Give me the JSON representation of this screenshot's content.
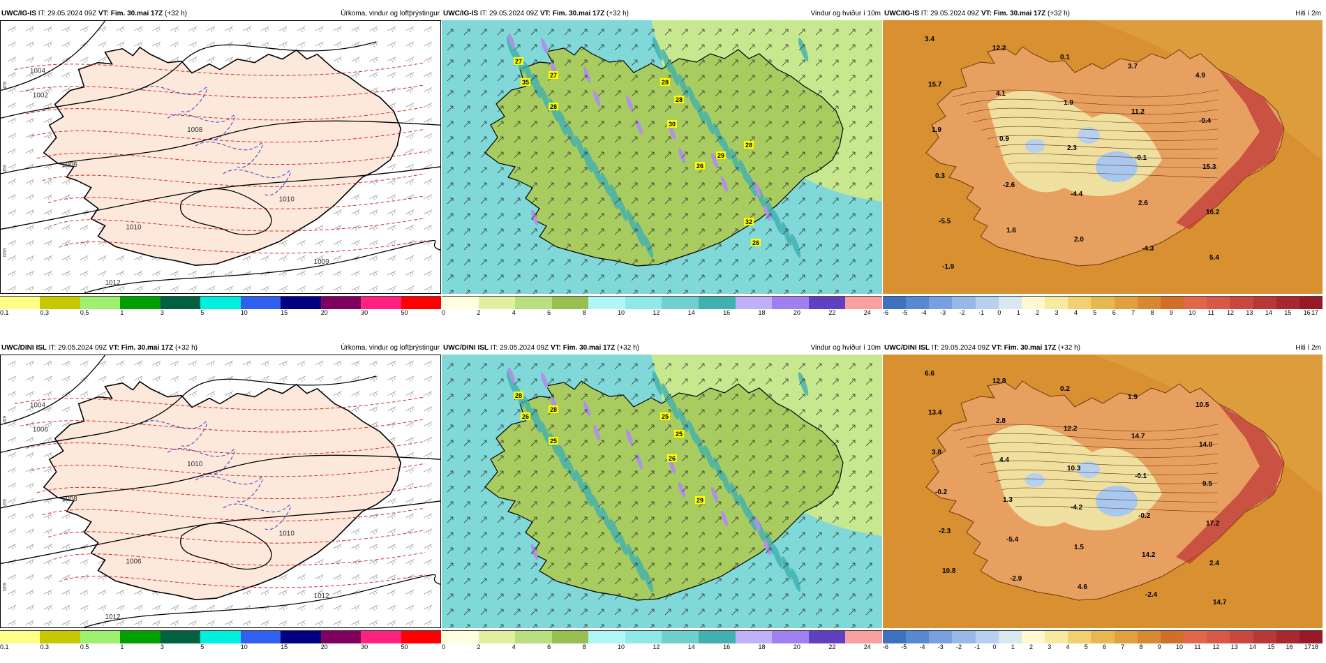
{
  "rows": [
    {
      "model": "UWC/IG-IS",
      "it_label": "IT:",
      "it_value": "29.05.2024 09Z",
      "vt_label": "VT:",
      "vt_value": "Fim. 30.mai 17Z",
      "lead": "(+32 h)"
    },
    {
      "model": "UWC/DINI ISL",
      "it_label": "IT:",
      "it_value": "29.05.2024 09Z",
      "vt_label": "VT:",
      "vt_value": "Fim. 30.mai 17Z",
      "lead": "(+32 h)"
    }
  ],
  "panel_titles": {
    "precip": "Úrkoma, vindur og loftþrýstingur",
    "wind": "Vindur og hviður í 10m",
    "temp": "Hiti í 2m"
  },
  "colorbars": {
    "precip": {
      "colors": [
        "#ffff88",
        "#c8c800",
        "#a0f070",
        "#00a000",
        "#006040",
        "#00f0e0",
        "#3060f0",
        "#000080",
        "#800060",
        "#ff2080",
        "#ff0000"
      ],
      "ticks": [
        "0.1",
        "0.3",
        "0.5",
        "1",
        "3",
        "5",
        "10",
        "15",
        "20",
        "30",
        "50"
      ]
    },
    "wind": {
      "colors": [
        "#ffffe0",
        "#e0f0a0",
        "#b8e080",
        "#98c050",
        "#b0f8f8",
        "#90e8e8",
        "#70d0d0",
        "#40b0b0",
        "#c0b0f8",
        "#a080f0",
        "#6040c0",
        "#f8a0a0"
      ],
      "ticks": [
        "0",
        "2",
        "4",
        "6",
        "8",
        "10",
        "12",
        "14",
        "16",
        "18",
        "20",
        "22",
        "24"
      ]
    },
    "temp_top": {
      "colors": [
        "#4070c0",
        "#5888d0",
        "#78a0e0",
        "#98b8e8",
        "#b8d0f0",
        "#d8e8f0",
        "#fff8d0",
        "#f8e8a0",
        "#f0d070",
        "#e8b850",
        "#e0a040",
        "#d88830",
        "#d07028",
        "#e06848",
        "#d85848",
        "#c84840",
        "#b83838",
        "#a82830",
        "#981828"
      ],
      "ticks": [
        "-6",
        "-5",
        "-4",
        "-3",
        "-2",
        "-1",
        "0",
        "1",
        "2",
        "3",
        "4",
        "5",
        "6",
        "7",
        "8",
        "9",
        "10",
        "11",
        "12",
        "13",
        "14",
        "15",
        "16",
        "17"
      ]
    },
    "temp_bottom": {
      "colors": [
        "#4070c0",
        "#5888d0",
        "#78a0e0",
        "#98b8e8",
        "#b8d0f0",
        "#d8e8f0",
        "#fff8d0",
        "#f8e8a0",
        "#f0d070",
        "#e8b850",
        "#e0a040",
        "#d88830",
        "#d07028",
        "#e06848",
        "#d85848",
        "#c84840",
        "#b83838",
        "#a82830",
        "#981828"
      ],
      "ticks": [
        "-6",
        "-5",
        "-4",
        "-3",
        "-2",
        "-1",
        "0",
        "1",
        "2",
        "3",
        "4",
        "5",
        "6",
        "7",
        "8",
        "9",
        "10",
        "11",
        "12",
        "13",
        "14",
        "15",
        "16",
        "17",
        "18"
      ]
    }
  },
  "map_colors": {
    "sea_precip": "#ffffff",
    "land_precip": "#fde8dc",
    "sea_wind": "#80d8d8",
    "land_wind": "#a8cc60",
    "sea_temp": "#d89030",
    "land_temp": "#e8a060"
  },
  "isobar_labels": {
    "top": [
      "1004",
      "1002",
      "1006",
      "1008",
      "1010",
      "1010",
      "1012",
      "1009"
    ],
    "bottom": [
      "1004",
      "1006",
      "1008",
      "1010",
      "1006",
      "1010",
      "1012",
      "1012"
    ]
  },
  "gust_labels": {
    "top": [
      "27",
      "35",
      "27",
      "28",
      "28",
      "28",
      "30",
      "26",
      "29",
      "28",
      "32",
      "26"
    ],
    "bottom": [
      "28",
      "26",
      "28",
      "25",
      "25",
      "25",
      "26",
      "29"
    ]
  },
  "temp_labels": {
    "top": [
      "3.4",
      "12.2",
      "0.1",
      "3.7",
      "4.9",
      "15.7",
      "4.1",
      "1.9",
      "11.2",
      "-0.4",
      "1.9",
      "0.9",
      "2.3",
      "-0.1",
      "15.3",
      "0.3",
      "-2.6",
      "-4.4",
      "2.6",
      "16.2",
      "-5.5",
      "1.6",
      "2.0",
      "-4.3",
      "5.4",
      "-1.9"
    ],
    "bottom": [
      "6.6",
      "12.8",
      "0.2",
      "1.9",
      "10.5",
      "13.4",
      "2.8",
      "12.2",
      "14.7",
      "14.0",
      "3.8",
      "4.4",
      "10.3",
      "-0.1",
      "9.5",
      "-0.2",
      "1.3",
      "-4.2",
      "-0.2",
      "17.2",
      "-2.3",
      "-5.4",
      "1.5",
      "14.2",
      "2.4",
      "10.8",
      "-2.9",
      "4.6",
      "-2.4",
      "14.7"
    ]
  },
  "side_labels": [
    "N59",
    "N59",
    "N59"
  ]
}
